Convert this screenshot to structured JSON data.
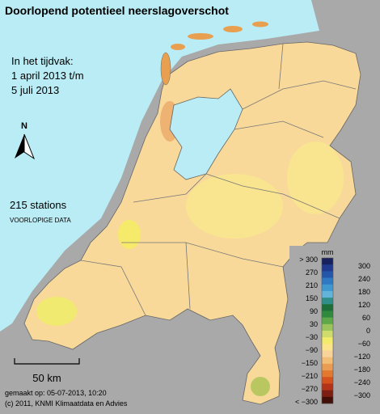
{
  "header": {
    "title": "Doorlopend potentieel neerslagoverschot"
  },
  "period": {
    "label": "In het tijdvak:",
    "from": "1 april 2013 t/m",
    "to": "5 juli 2013"
  },
  "north": "N",
  "stations": "215 stations",
  "status": "VOORLOPIGE DATA",
  "scale": "50 km",
  "footer": {
    "made": "gemaakt op: 05-07-2013, 10:20",
    "copyright": "(c) 2011, KNMI Klimaatdata en Advies"
  },
  "legend": {
    "unit": "mm",
    "labels_left": [
      "> 300",
      "270",
      "210",
      "150",
      "90",
      "30",
      "−30",
      "−90",
      "−150",
      "−210",
      "−270",
      "< −300"
    ],
    "labels_right": [
      "300",
      "240",
      "180",
      "120",
      "60",
      "0",
      "−60",
      "−120",
      "−180",
      "−240",
      "−300"
    ],
    "colors": [
      "#16215e",
      "#1f3a8f",
      "#2457aa",
      "#2f78c2",
      "#3f98d0",
      "#62b5d9",
      "#2f8f88",
      "#1e6e3a",
      "#2f8a3e",
      "#5fa84a",
      "#9cc45c",
      "#cfdc6c",
      "#f3ec6a",
      "#fbe48a",
      "#f8d39a",
      "#f2bd74",
      "#e99c52",
      "#e2792e",
      "#d5521f",
      "#b23318",
      "#7c1f10",
      "#421008"
    ]
  }
}
